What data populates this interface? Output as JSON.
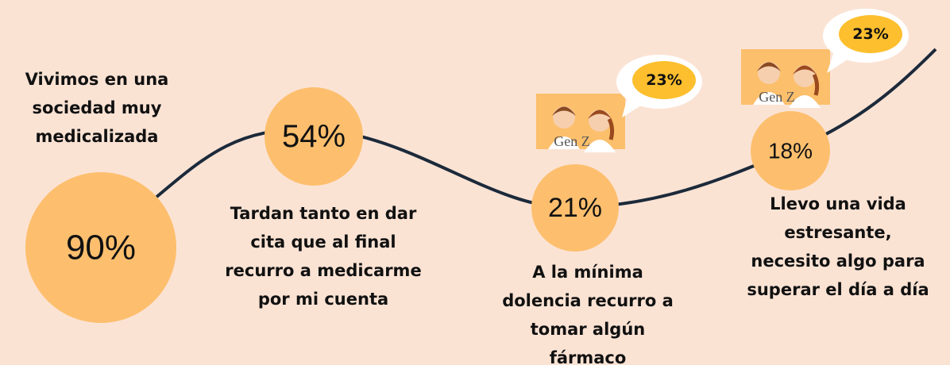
{
  "items": [
    {
      "circle": "90%",
      "caption": [
        "Vivimos en una",
        "sociedad muy",
        "medicalizada"
      ]
    },
    {
      "circle": "54%",
      "caption": [
        "Tardan tanto en dar",
        "cita que al final",
        "recurro a medicarme",
        "por mi cuenta"
      ]
    },
    {
      "circle": "21%",
      "caption": [
        "A la mínima",
        "dolencia recurro a",
        "tomar algún",
        "fármaco"
      ],
      "badge": {
        "label": "Gen Z",
        "bubble": "23%"
      }
    },
    {
      "circle": "18%",
      "caption": [
        "Llevo una vida",
        "estresante,",
        "necesito algo para",
        "superar el día a día"
      ],
      "badge": {
        "label": "Gen Z",
        "bubble": "23%"
      }
    }
  ]
}
